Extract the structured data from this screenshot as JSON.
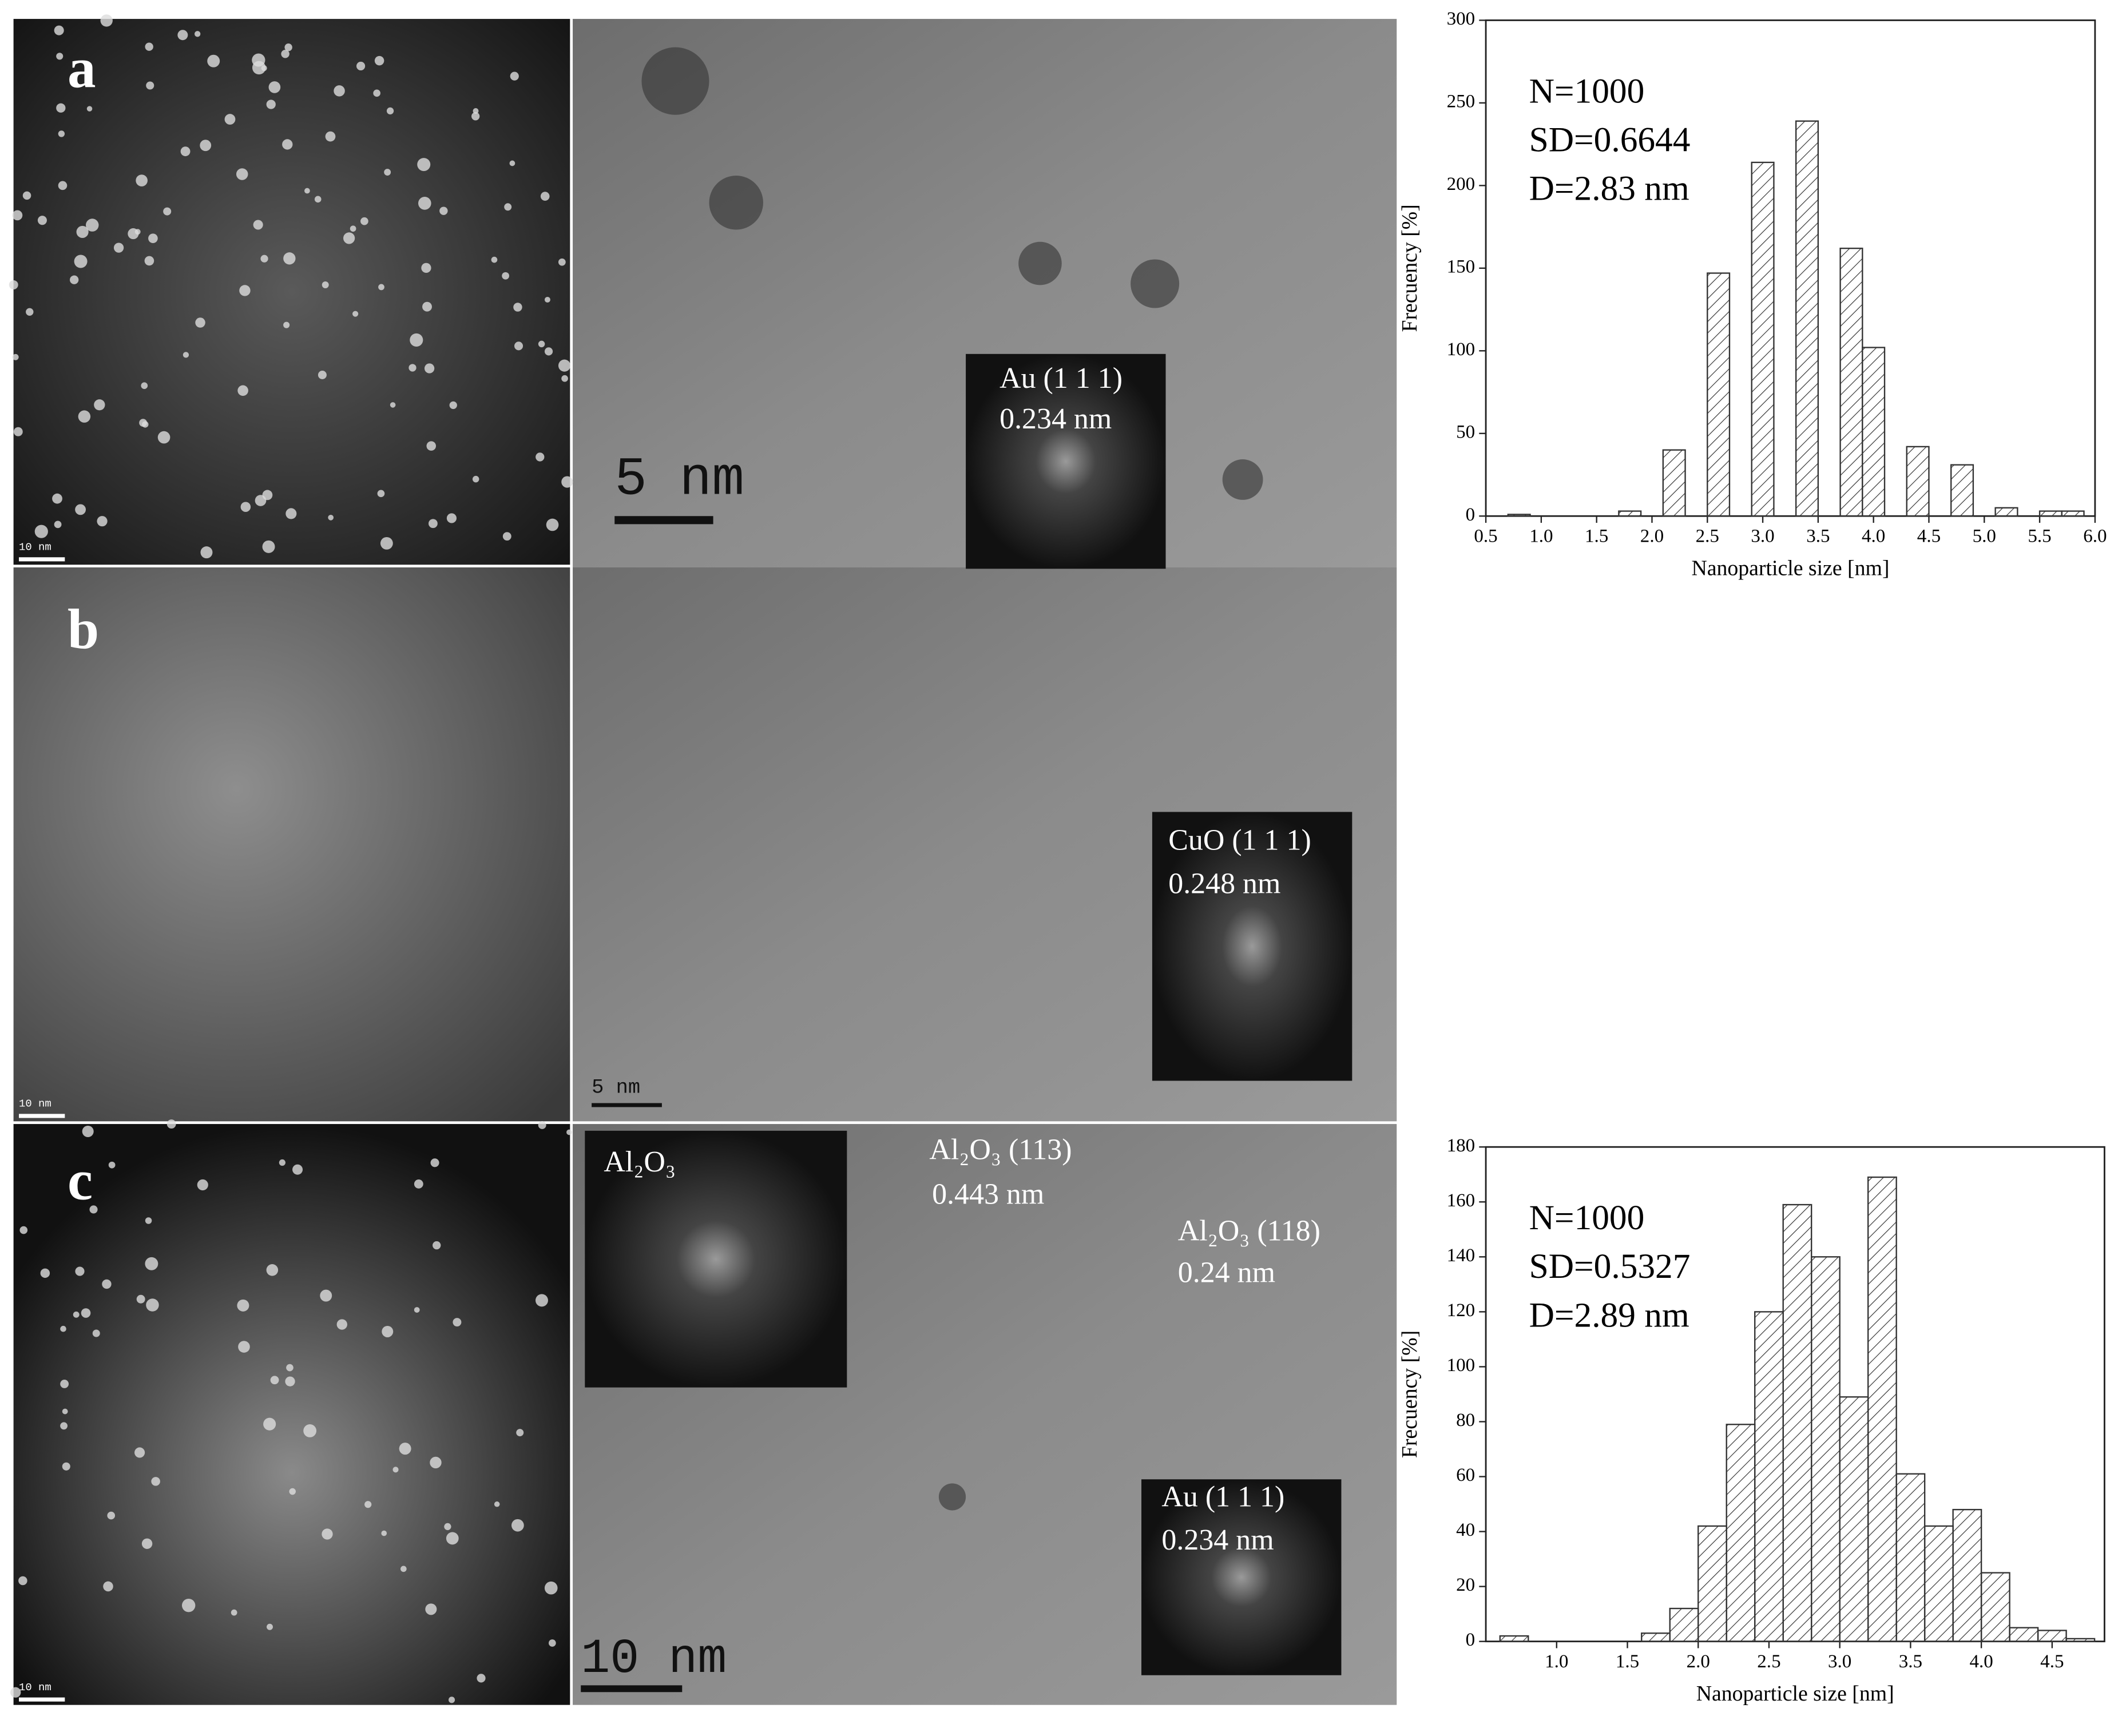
{
  "panels": [
    {
      "label": "a",
      "small_scale": "10 nm",
      "scale": "5 nm",
      "texts": [
        "Au (1 1 1)",
        "0.234 nm"
      ]
    },
    {
      "label": "b",
      "small_scale": "10 nm",
      "scale": "5 nm",
      "texts": [
        "CuO (1 1 1)",
        "0.248 nm"
      ]
    },
    {
      "label": "c",
      "small_scale": "10 nm",
      "scale": "10 nm",
      "texts": [
        "Al₂O₃",
        "Al₂O₃ (113)",
        "0.443 nm",
        "Al₂O₃ (118)",
        "0.24 nm",
        "Au (1 1 1)",
        "0.234 nm"
      ]
    }
  ],
  "chart_data": [
    {
      "type": "bar",
      "xlabel": "Nanoparticle size [nm]",
      "ylabel": "Frecuency [%]",
      "annotations": [
        "N=1000",
        "SD=0.6644",
        "D=2.83 nm"
      ],
      "x": [
        0.8,
        1.8,
        2.2,
        2.6,
        3.0,
        3.4,
        3.8,
        4.0,
        4.4,
        4.8,
        5.2,
        5.6,
        5.8
      ],
      "values": [
        1,
        3,
        40,
        147,
        214,
        239,
        162,
        102,
        42,
        31,
        5,
        3,
        3
      ],
      "color": "#333333",
      "xlim": [
        0.5,
        6.0
      ],
      "xticks": [
        0.5,
        {
          "value": 1,
          "label": "1.0"
        },
        1.5,
        {
          "value": 2,
          "label": "2.0"
        },
        2.5,
        {
          "value": 3,
          "label": "3.0"
        },
        3.5,
        {
          "value": 4,
          "label": "4.0"
        },
        4.5,
        {
          "value": 5,
          "label": "5.0"
        },
        5.5,
        {
          "value": 6,
          "label": "6.0"
        }
      ],
      "ylim": [
        0,
        300
      ],
      "yticks": [
        0,
        50,
        100,
        150,
        200,
        250,
        300
      ]
    },
    {
      "type": "bar",
      "xlabel": "Nanoparticle size [nm]",
      "ylabel": "Frecuency [%]",
      "annotations": [
        "N=1000",
        "SD=0.5327",
        "D=2.89 nm"
      ],
      "x": [
        0.7,
        1.7,
        1.9,
        2.1,
        2.3,
        2.5,
        2.7,
        2.9,
        3.1,
        3.3,
        3.5,
        3.7,
        3.9,
        4.1,
        4.3,
        4.5,
        4.7
      ],
      "values": [
        2,
        3,
        12,
        42,
        79,
        120,
        159,
        140,
        89,
        169,
        61,
        42,
        48,
        25,
        5,
        4,
        1
      ],
      "color": "#333333",
      "xlim": [
        0.5,
        4.87
      ],
      "xticks": [
        {
          "value": 1,
          "label": "1.0"
        },
        1.5,
        {
          "value": 2,
          "label": "2.0"
        },
        2.5,
        {
          "value": 3,
          "label": "3.0"
        },
        3.5,
        {
          "value": 4,
          "label": "4.0"
        },
        4.5
      ],
      "ylim": [
        0,
        180
      ],
      "yticks": [
        0,
        20,
        40,
        60,
        80,
        100,
        120,
        140,
        160,
        180
      ]
    }
  ]
}
